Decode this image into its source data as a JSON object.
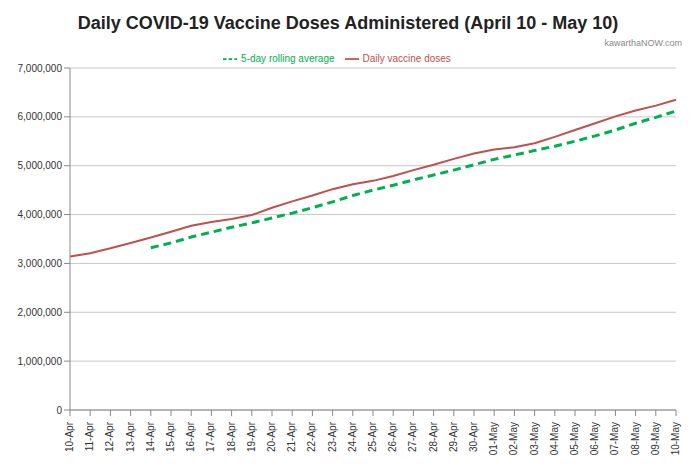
{
  "chart_data": {
    "type": "line",
    "title": "Daily COVID-19 Vaccine Doses Administered (April 10 - May 10)",
    "annotation": "kawarthaNOW.com",
    "categories": [
      "10-Apr",
      "11-Apr",
      "12-Apr",
      "13-Apr",
      "14-Apr",
      "15-Apr",
      "16-Apr",
      "17-Apr",
      "18-Apr",
      "19-Apr",
      "20-Apr",
      "21-Apr",
      "22-Apr",
      "23-Apr",
      "24-Apr",
      "25-Apr",
      "26-Apr",
      "27-Apr",
      "28-Apr",
      "29-Apr",
      "30-Apr",
      "01-May",
      "02-May",
      "03-May",
      "04-May",
      "05-May",
      "06-May",
      "07-May",
      "08-May",
      "09-May",
      "10-May"
    ],
    "series": [
      {
        "name": "Daily vaccine doses",
        "color": "#c0504d",
        "line_style": "solid",
        "marker": "none",
        "values": [
          3140000,
          3210000,
          3310000,
          3420000,
          3530000,
          3650000,
          3770000,
          3850000,
          3910000,
          3990000,
          4140000,
          4270000,
          4390000,
          4520000,
          4620000,
          4690000,
          4790000,
          4910000,
          5020000,
          5140000,
          5250000,
          5330000,
          5380000,
          5460000,
          5590000,
          5730000,
          5870000,
          6010000,
          6130000,
          6230000,
          6350000
        ]
      },
      {
        "name": "5-day rolling average",
        "color": "#00b050",
        "line_style": "dashed",
        "marker": "none",
        "values": [
          null,
          null,
          null,
          null,
          3320000,
          3420000,
          3540000,
          3640000,
          3740000,
          3830000,
          3930000,
          4030000,
          4140000,
          4260000,
          4390000,
          4500000,
          4600000,
          4710000,
          4810000,
          4910000,
          5020000,
          5130000,
          5220000,
          5310000,
          5400000,
          5500000,
          5610000,
          5730000,
          5870000,
          5990000,
          6120000
        ]
      }
    ],
    "ylim": [
      0,
      7000000
    ],
    "yticks": [
      0,
      {
        "value": 1000000,
        "label": "1,000,000"
      },
      {
        "value": 2000000,
        "label": "2,000,000"
      },
      {
        "value": 3000000,
        "label": "3,000,000"
      },
      {
        "value": 4000000,
        "label": "4,000,000"
      },
      {
        "value": 5000000,
        "label": "5,000,000"
      },
      {
        "value": 6000000,
        "label": "6,000,000"
      },
      {
        "value": 7000000,
        "label": "7,000,000"
      }
    ],
    "grid": true,
    "legend": "top"
  }
}
